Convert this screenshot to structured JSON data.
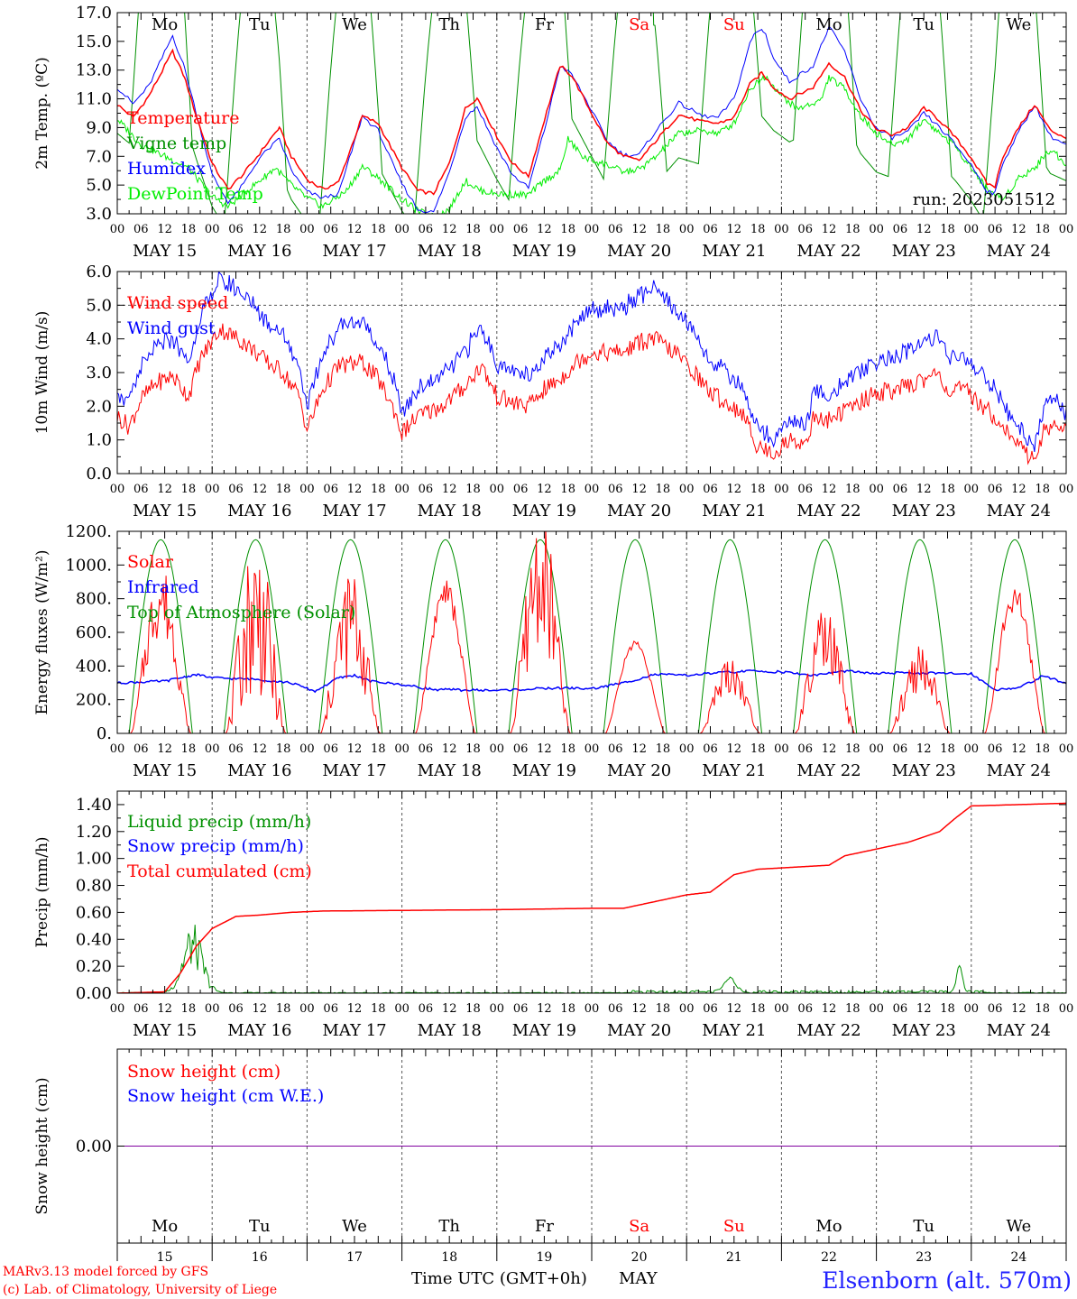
{
  "chart_data": [
    {
      "type": "line",
      "ylabel": "2m Temp. (ºC)",
      "ylim": [
        3.0,
        17.0
      ],
      "yticks": [
        "3.0",
        "5.0",
        "7.0",
        "9.0",
        "11.0",
        "13.0",
        "15.0",
        "17.0"
      ],
      "annotation": "run: 2023051512",
      "series": [
        {
          "name": "Temperature",
          "color": "#ff0000"
        },
        {
          "name": "Vigne temp",
          "color": "#009000"
        },
        {
          "name": "Humidex",
          "color": "#0000ff"
        },
        {
          "name": "DewPoint Temp",
          "color": "#00ee00"
        }
      ]
    },
    {
      "type": "line",
      "ylabel": "10m Wind (m/s)",
      "ylim": [
        0.0,
        6.0
      ],
      "yticks": [
        "0.0",
        "1.0",
        "2.0",
        "3.0",
        "4.0",
        "5.0",
        "6.0"
      ],
      "series": [
        {
          "name": "Wind speed",
          "color": "#ff0000"
        },
        {
          "name": "Wind gust",
          "color": "#0000ff"
        }
      ]
    },
    {
      "type": "line",
      "ylabel": "Energy fluxes (W/m²)",
      "ylim": [
        0,
        1200
      ],
      "yticks": [
        "0.",
        "200.",
        "400.",
        "600.",
        "800.",
        "1000.",
        "1200."
      ],
      "series": [
        {
          "name": "Solar",
          "color": "#ff0000"
        },
        {
          "name": "Infrared",
          "color": "#0000ff"
        },
        {
          "name": "Top of Atmosphere (Solar)",
          "color": "#009000"
        }
      ]
    },
    {
      "type": "line",
      "ylabel": "Precip (mm/h)",
      "ylim": [
        0.0,
        1.5
      ],
      "yticks": [
        "0.00",
        "0.20",
        "0.40",
        "0.60",
        "0.80",
        "1.00",
        "1.20",
        "1.40"
      ],
      "series": [
        {
          "name": "Liquid precip (mm/h)",
          "color": "#009000"
        },
        {
          "name": "Snow precip (mm/h)",
          "color": "#0000ff"
        },
        {
          "name": "Total cumulated (cm)",
          "color": "#ff0000"
        }
      ]
    },
    {
      "type": "line",
      "ylabel": "Snow height (cm)",
      "ylim": [
        -1.0,
        1.0
      ],
      "yticks": [
        "0.00"
      ],
      "series": [
        {
          "name": "Snow height (cm)",
          "color": "#ff0000"
        },
        {
          "name": "Snow height (cm W.E.)",
          "color": "#0000ff"
        }
      ]
    }
  ],
  "days": [
    {
      "date": "MAY 15",
      "dow": "Mo",
      "num": "15",
      "weekend": false
    },
    {
      "date": "MAY 16",
      "dow": "Tu",
      "num": "16",
      "weekend": false
    },
    {
      "date": "MAY 17",
      "dow": "We",
      "num": "17",
      "weekend": false
    },
    {
      "date": "MAY 18",
      "dow": "Th",
      "num": "18",
      "weekend": false
    },
    {
      "date": "MAY 19",
      "dow": "Fr",
      "num": "19",
      "weekend": false
    },
    {
      "date": "MAY 20",
      "dow": "Sa",
      "num": "20",
      "weekend": true
    },
    {
      "date": "MAY 21",
      "dow": "Su",
      "num": "21",
      "weekend": true
    },
    {
      "date": "MAY 22",
      "dow": "Mo",
      "num": "22",
      "weekend": false
    },
    {
      "date": "MAY 23",
      "dow": "Tu",
      "num": "23",
      "weekend": false
    },
    {
      "date": "MAY 24",
      "dow": "We",
      "num": "24",
      "weekend": false
    }
  ],
  "hour_ticks": [
    "00",
    "06",
    "12",
    "18"
  ],
  "xlabel": "Time UTC (GMT+0h)",
  "month": "MAY",
  "credit_line1": "MARv3.13 model forced by GFS",
  "credit_line2": "(c) Lab. of Climatology, University of Liege",
  "station": "Elsenborn (alt. 570m)"
}
